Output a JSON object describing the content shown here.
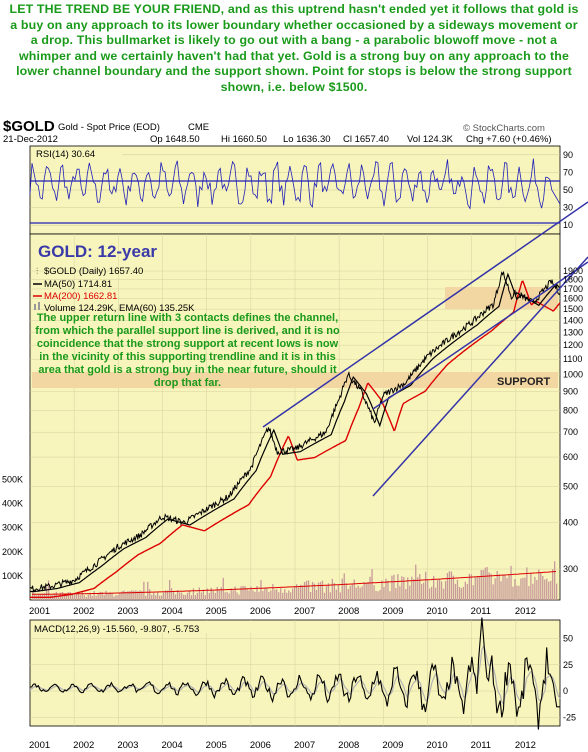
{
  "headline": "LET THE TREND BE YOUR FRIEND, and as this uptrend hasn't ended yet it follows that gold is a buy on any approach to its lower boundary whether occasioned by a sideways movement or a drop. This bullmarket is likely to go out with a bang - a parabolic blowoff move - not a whimper and we certainly haven't had that yet. Gold is a strong buy on any approach to the lower channel boundary and the support shown. Point for stops is below the strong support shown, i.e. below $1500.",
  "header": {
    "symbol": "$GOLD",
    "name": "Gold - Spot Price (EOD)",
    "exchange": "CME",
    "date": "21-Dec-2012",
    "open": "Op 1648.50",
    "high": "Hi 1660.50",
    "low": "Lo 1636.30",
    "close": "Cl 1657.40",
    "volume": "Vol 124.3K",
    "change": "Chg +7.60 (+0.46%)",
    "credit": "© StockCharts.com"
  },
  "colors": {
    "panel_bg": "#f7f4bc",
    "price": "#000000",
    "ma50": "#000000",
    "ma200": "#dd0000",
    "volume": "#c89a9a",
    "volume_ema": "#dd0000",
    "rsi": "#2020b8",
    "channel": "#3434a8",
    "annotation_green": "#1a9a1a",
    "title_blue": "#3a3aa8",
    "support_band": "#f3d7a3",
    "macd": "#000000",
    "macd_signal": "#b4b4b4"
  },
  "rsi_panel": {
    "label": "RSI(14) 30.64",
    "ticks": [
      "90",
      "70",
      "50",
      "30",
      "10"
    ]
  },
  "price_panel": {
    "title": "GOLD: 12-year",
    "legend": [
      {
        "icon": "candle-icon",
        "text": "$GOLD (Daily) 1657.40"
      },
      {
        "icon": "line-black",
        "text": "MA(50) 1714.81"
      },
      {
        "icon": "line-red",
        "text": "MA(200) 1662.81"
      },
      {
        "icon": "volume-icon",
        "text": "Volume 124.29K, EMA(60) 135.25K"
      }
    ],
    "annotation": "The upper return line with 3 contacts defines the channel, from which the parallel support line is derived, and it is no coincidence that the strong support at recent lows is now in the vicinity of this supporting trendline and it is in this area that gold is a strong buy in the near future, should it drop that far.",
    "support_label": "SUPPORT",
    "price_ticks": [
      "1900",
      "1800",
      "1700",
      "1600",
      "1500",
      "1400",
      "1300",
      "1200",
      "1100",
      "1000",
      "900",
      "800",
      "700",
      "600",
      "500",
      "400",
      "300"
    ],
    "volume_ticks": [
      "500K",
      "400K",
      "300K",
      "200K",
      "100K"
    ]
  },
  "macd_panel": {
    "label": "MACD(12,26,9) -15.560, -9.807, -5.753",
    "ticks": [
      "50",
      "25",
      "0",
      "-25"
    ]
  },
  "x_axis_years": [
    "2001",
    "2002",
    "2003",
    "2004",
    "2005",
    "2006",
    "2007",
    "2008",
    "2009",
    "2010",
    "2011",
    "2012"
  ],
  "chart_data": {
    "type": "line",
    "x": [
      "2001",
      "2002",
      "2003",
      "2004",
      "2005",
      "2006",
      "2007",
      "2008",
      "2009",
      "2010",
      "2011",
      "2012"
    ],
    "series": [
      {
        "name": "$GOLD (Daily)",
        "values": [
          265,
          280,
          345,
          415,
          435,
          560,
          630,
          860,
          880,
          1120,
          1380,
          1660
        ]
      },
      {
        "name": "MA(200)",
        "values": [
          270,
          278,
          330,
          400,
          425,
          510,
          620,
          800,
          880,
          1080,
          1360,
          1660
        ]
      }
    ],
    "title": "GOLD: 12-year",
    "ylabel": "",
    "ylim": [
      250,
      1900
    ],
    "y_scale": "log",
    "support_band": [
      940,
      1040
    ],
    "last_close": 1657.4
  }
}
